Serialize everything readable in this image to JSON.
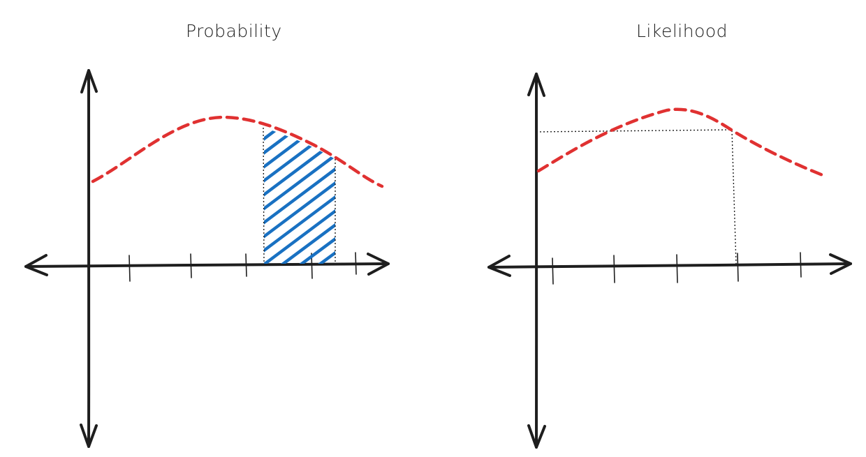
{
  "panels": [
    {
      "title": "Probability",
      "curve_color": "#e03131",
      "shade_color": "#1971c2",
      "shaded_region": "between two x values, under the curve",
      "reference_lines": "none"
    },
    {
      "title": "Likelihood",
      "curve_color": "#e03131",
      "reference_lines": "dotted horizontal line from y-axis to curve and dotted vertical line down to x-axis"
    }
  ],
  "colors": {
    "axis": "#1e1e1e",
    "curve": "#e03131",
    "shade": "#1971c2",
    "background": "#ffffff"
  }
}
